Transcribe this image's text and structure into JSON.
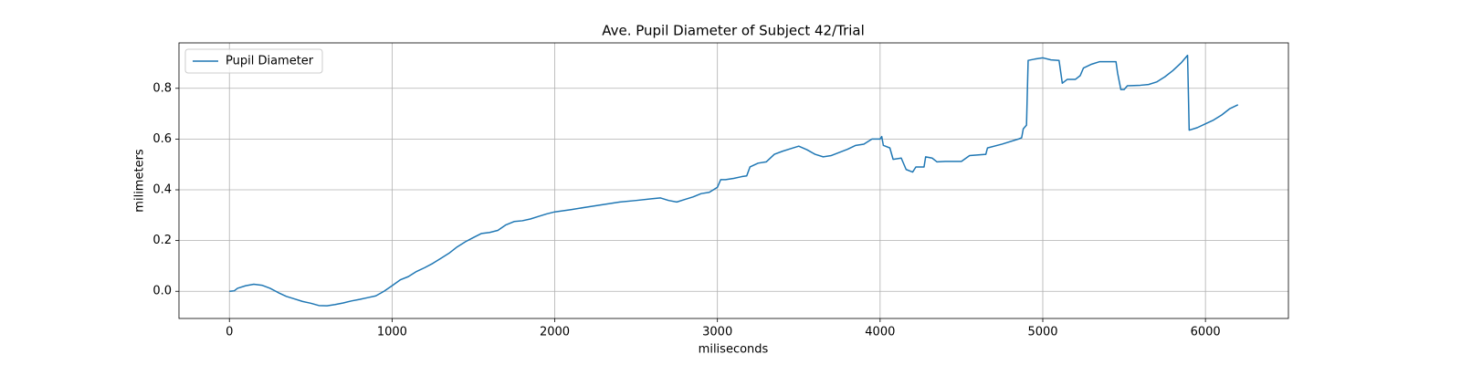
{
  "chart_data": {
    "type": "line",
    "title": "Ave. Pupil Diameter of Subject 42/Trial",
    "xlabel": "miliseconds",
    "ylabel": "milimeters",
    "x": [
      0,
      30,
      50,
      100,
      150,
      200,
      250,
      300,
      350,
      400,
      450,
      500,
      550,
      600,
      650,
      700,
      750,
      800,
      850,
      900,
      950,
      1000,
      1050,
      1100,
      1150,
      1200,
      1250,
      1300,
      1350,
      1400,
      1450,
      1500,
      1550,
      1600,
      1650,
      1700,
      1750,
      1800,
      1850,
      1900,
      1950,
      2000,
      2100,
      2200,
      2300,
      2400,
      2500,
      2600,
      2650,
      2700,
      2750,
      2800,
      2850,
      2900,
      2950,
      3000,
      3020,
      3050,
      3100,
      3150,
      3180,
      3200,
      3250,
      3300,
      3350,
      3400,
      3450,
      3500,
      3550,
      3600,
      3650,
      3700,
      3800,
      3850,
      3900,
      3950,
      4000,
      4010,
      4020,
      4060,
      4080,
      4130,
      4160,
      4200,
      4220,
      4270,
      4280,
      4320,
      4350,
      4400,
      4450,
      4500,
      4550,
      4650,
      4660,
      4750,
      4850,
      4870,
      4880,
      4900,
      4910,
      4950,
      5000,
      5050,
      5100,
      5120,
      5150,
      5200,
      5230,
      5250,
      5300,
      5350,
      5450,
      5460,
      5480,
      5500,
      5520,
      5600,
      5650,
      5700,
      5750,
      5800,
      5850,
      5890,
      5900,
      5950,
      6000,
      6050,
      6100,
      6150,
      6200
    ],
    "series": [
      {
        "name": "Pupil Diameter",
        "color": "#1f77b4",
        "values": [
          0.0,
          0.002,
          0.012,
          0.022,
          0.028,
          0.024,
          0.012,
          -0.005,
          -0.02,
          -0.03,
          -0.04,
          -0.047,
          -0.056,
          -0.057,
          -0.052,
          -0.046,
          -0.038,
          -0.032,
          -0.025,
          -0.018,
          0.0,
          0.022,
          0.045,
          0.058,
          0.078,
          0.093,
          0.11,
          0.13,
          0.15,
          0.175,
          0.195,
          0.212,
          0.228,
          0.232,
          0.24,
          0.262,
          0.275,
          0.278,
          0.285,
          0.295,
          0.305,
          0.313,
          0.322,
          0.332,
          0.342,
          0.352,
          0.358,
          0.365,
          0.368,
          0.358,
          0.352,
          0.362,
          0.372,
          0.385,
          0.39,
          0.41,
          0.44,
          0.44,
          0.445,
          0.452,
          0.455,
          0.49,
          0.505,
          0.51,
          0.54,
          0.552,
          0.562,
          0.572,
          0.558,
          0.54,
          0.53,
          0.535,
          0.56,
          0.575,
          0.58,
          0.6,
          0.6,
          0.61,
          0.575,
          0.565,
          0.52,
          0.525,
          0.48,
          0.47,
          0.49,
          0.49,
          0.53,
          0.525,
          0.51,
          0.512,
          0.512,
          0.512,
          0.535,
          0.54,
          0.565,
          0.58,
          0.6,
          0.605,
          0.64,
          0.655,
          0.91,
          0.915,
          0.92,
          0.912,
          0.91,
          0.82,
          0.835,
          0.835,
          0.85,
          0.88,
          0.895,
          0.905,
          0.905,
          0.86,
          0.795,
          0.795,
          0.81,
          0.812,
          0.815,
          0.825,
          0.845,
          0.87,
          0.9,
          0.93,
          0.635,
          0.645,
          0.66,
          0.675,
          0.695,
          0.72,
          0.735
        ]
      }
    ],
    "xlim": [
      -310,
      6510
    ],
    "xticks": [
      0,
      1000,
      2000,
      3000,
      4000,
      5000,
      6000
    ],
    "ylim": [
      -0.107,
      0.979
    ],
    "yticks": [
      {
        "value": 0,
        "label": "0.0"
      },
      0.2,
      0.4,
      0.6,
      0.8
    ],
    "grid": true,
    "legend": "upper-left"
  }
}
